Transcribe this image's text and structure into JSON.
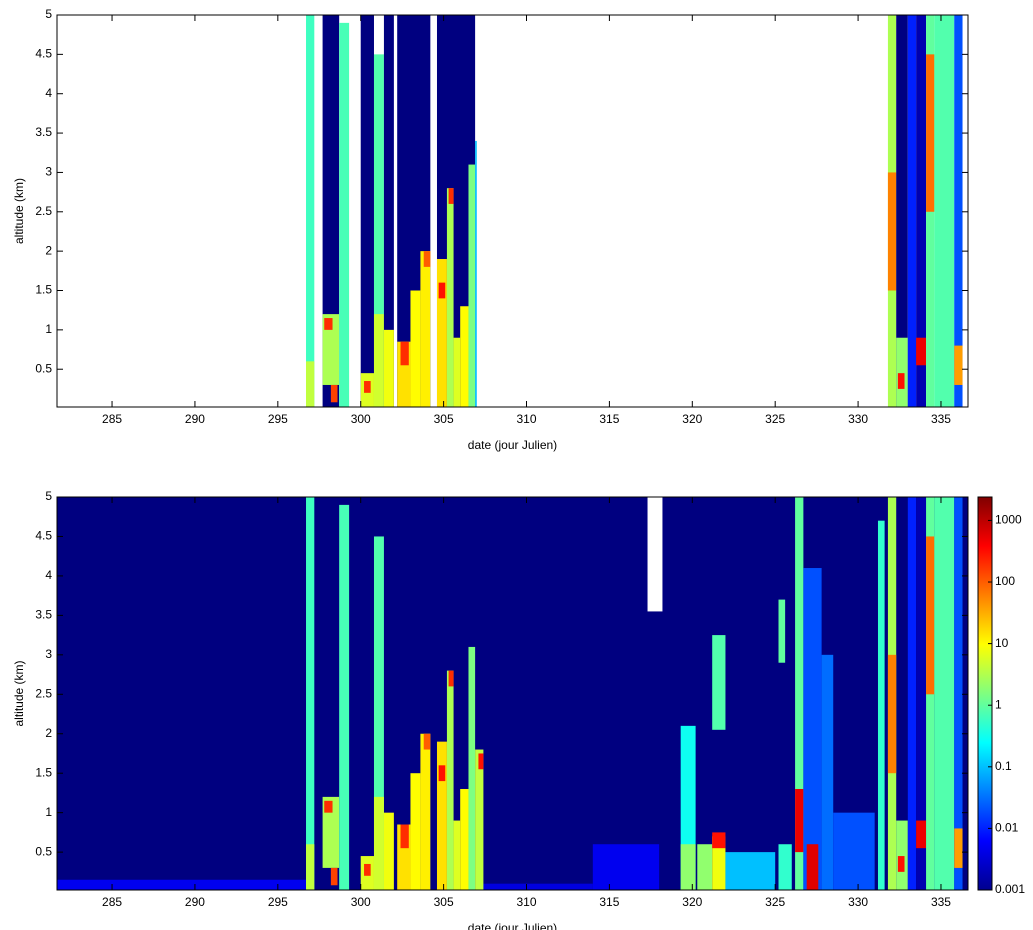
{
  "chart_data": [
    {
      "type": "heatmap",
      "xlabel": "date (jour Julien)",
      "ylabel": "altitude (km)",
      "xlim": [
        281.68,
        336.63
      ],
      "ylim": [
        0.02,
        5
      ],
      "xticks": [
        285,
        290,
        295,
        300,
        305,
        310,
        315,
        320,
        325,
        330,
        335
      ],
      "yticks": [
        0.5,
        1,
        1.5,
        2,
        2.5,
        3,
        3.5,
        4,
        4.5,
        5
      ],
      "colormap": "jet",
      "clim": [
        0.001,
        2400
      ],
      "log_color": true,
      "cells": [
        [
          296.7,
          297.2,
          0.02,
          5,
          0.6
        ],
        [
          296.7,
          297.2,
          0.02,
          0.6,
          4
        ],
        [
          297.7,
          298.7,
          0.02,
          5,
          0.001
        ],
        [
          297.7,
          298.7,
          0.3,
          1.2,
          3
        ],
        [
          297.8,
          298.3,
          1.0,
          1.15,
          200
        ],
        [
          298.2,
          298.6,
          0.08,
          0.3,
          150
        ],
        [
          298.7,
          299.3,
          0.02,
          4.9,
          0.7
        ],
        [
          300.0,
          300.8,
          0.02,
          5,
          0.001
        ],
        [
          300.0,
          300.8,
          0.02,
          0.45,
          6
        ],
        [
          300.2,
          300.6,
          0.2,
          0.35,
          200
        ],
        [
          300.8,
          301.4,
          0.02,
          4.5,
          0.8
        ],
        [
          300.8,
          301.4,
          0.02,
          1.2,
          5
        ],
        [
          301.4,
          302.0,
          0.02,
          5,
          0.001
        ],
        [
          301.4,
          302.0,
          0.02,
          1.0,
          8
        ],
        [
          302.2,
          304.2,
          0.02,
          5,
          0.001
        ],
        [
          302.2,
          303.0,
          0.02,
          0.85,
          15
        ],
        [
          302.4,
          302.9,
          0.55,
          0.85,
          200
        ],
        [
          303.0,
          303.6,
          0.02,
          1.5,
          10
        ],
        [
          303.6,
          304.2,
          0.02,
          2.0,
          12
        ],
        [
          303.8,
          304.2,
          1.8,
          2.0,
          100
        ],
        [
          304.6,
          306.9,
          0.02,
          5,
          0.001
        ],
        [
          304.6,
          305.2,
          0.02,
          1.9,
          15
        ],
        [
          304.7,
          305.1,
          1.4,
          1.6,
          300
        ],
        [
          305.2,
          305.6,
          0.02,
          2.8,
          3
        ],
        [
          305.3,
          305.6,
          2.6,
          2.8,
          200
        ],
        [
          305.6,
          306.0,
          0.02,
          0.9,
          6
        ],
        [
          306.0,
          306.5,
          0.02,
          1.3,
          10
        ],
        [
          306.5,
          306.9,
          0.02,
          3.1,
          1.5
        ],
        [
          306.9,
          307.0,
          0.02,
          3.4,
          0.1
        ],
        [
          331.8,
          332.3,
          0.02,
          5,
          3
        ],
        [
          331.8,
          332.3,
          1.5,
          3.0,
          60
        ],
        [
          332.3,
          333.0,
          0.02,
          5,
          0.001
        ],
        [
          332.3,
          333.0,
          0.02,
          0.9,
          2
        ],
        [
          332.4,
          332.8,
          0.25,
          0.45,
          300
        ],
        [
          333.0,
          333.5,
          0.02,
          5,
          0.01
        ],
        [
          333.5,
          334.1,
          0.02,
          5,
          0.002
        ],
        [
          333.5,
          334.1,
          0.55,
          0.9,
          500
        ],
        [
          334.1,
          334.6,
          0.02,
          5,
          1
        ],
        [
          334.1,
          334.6,
          2.5,
          4.5,
          80
        ],
        [
          334.6,
          335.8,
          0.02,
          5,
          0.8
        ],
        [
          335.8,
          336.3,
          0.02,
          5,
          0.02
        ],
        [
          335.8,
          336.3,
          0.3,
          0.8,
          40
        ]
      ]
    },
    {
      "type": "heatmap",
      "xlabel": "date (jour Julien)",
      "ylabel": "altitude (km)",
      "xlim": [
        281.68,
        336.63
      ],
      "ylim": [
        0.02,
        5
      ],
      "xticks": [
        285,
        290,
        295,
        300,
        305,
        310,
        315,
        320,
        325,
        330,
        335
      ],
      "yticks": [
        0.5,
        1,
        1.5,
        2,
        2.5,
        3,
        3.5,
        4,
        4.5,
        5
      ],
      "colormap": "jet",
      "clim": [
        0.001,
        2400
      ],
      "log_color": true,
      "colorbar": true,
      "cticks": [
        0.001,
        0.01,
        0.1,
        1,
        10,
        100,
        1000
      ],
      "gaps": [
        [
          317.3,
          318.2,
          3.55,
          5
        ]
      ],
      "cells": [
        [
          281.68,
          336.63,
          0.02,
          5,
          0.001
        ],
        [
          281.68,
          297,
          0.02,
          0.15,
          0.005
        ],
        [
          307,
          314,
          0.02,
          0.1,
          0.004
        ],
        [
          314,
          318,
          0.02,
          0.6,
          0.005
        ],
        [
          296.7,
          297.2,
          0.02,
          5,
          0.6
        ],
        [
          296.7,
          297.2,
          0.02,
          0.6,
          4
        ],
        [
          297.7,
          298.7,
          0.3,
          1.2,
          3
        ],
        [
          297.8,
          298.3,
          1.0,
          1.15,
          200
        ],
        [
          298.2,
          298.6,
          0.08,
          0.3,
          150
        ],
        [
          298.7,
          299.3,
          0.02,
          4.9,
          0.7
        ],
        [
          300.0,
          300.8,
          0.02,
          0.45,
          6
        ],
        [
          300.2,
          300.6,
          0.2,
          0.35,
          200
        ],
        [
          300.8,
          301.4,
          0.02,
          4.5,
          0.8
        ],
        [
          300.8,
          301.4,
          0.02,
          1.2,
          5
        ],
        [
          301.4,
          302.0,
          0.02,
          1.0,
          8
        ],
        [
          302.2,
          303.0,
          0.02,
          0.85,
          15
        ],
        [
          302.4,
          302.9,
          0.55,
          0.85,
          200
        ],
        [
          303.0,
          303.6,
          0.02,
          1.5,
          10
        ],
        [
          303.6,
          304.2,
          0.02,
          2.0,
          12
        ],
        [
          303.8,
          304.2,
          1.8,
          2.0,
          100
        ],
        [
          304.6,
          305.2,
          0.02,
          1.9,
          15
        ],
        [
          304.7,
          305.1,
          1.4,
          1.6,
          300
        ],
        [
          305.2,
          305.6,
          0.02,
          2.8,
          3
        ],
        [
          305.3,
          305.6,
          2.6,
          2.8,
          200
        ],
        [
          305.6,
          306.0,
          0.02,
          0.9,
          6
        ],
        [
          306.0,
          306.5,
          0.02,
          1.3,
          10
        ],
        [
          306.5,
          306.9,
          0.02,
          3.1,
          1.5
        ],
        [
          306.9,
          307.4,
          0.02,
          1.8,
          4
        ],
        [
          307.1,
          307.4,
          1.55,
          1.75,
          300
        ],
        [
          319.3,
          320.2,
          0.02,
          2.1,
          0.3
        ],
        [
          319.3,
          320.2,
          0.02,
          0.6,
          2
        ],
        [
          320.3,
          321.2,
          0.02,
          0.6,
          2
        ],
        [
          321.2,
          322.0,
          0.02,
          0.7,
          8
        ],
        [
          321.2,
          322.0,
          0.55,
          0.75,
          300
        ],
        [
          321.2,
          322.0,
          2.05,
          3.25,
          0.8
        ],
        [
          322.0,
          325.0,
          0.02,
          0.5,
          0.1
        ],
        [
          325.2,
          325.6,
          2.9,
          3.7,
          1
        ],
        [
          325.2,
          326.0,
          0.02,
          0.6,
          0.5
        ],
        [
          326.2,
          326.7,
          0.02,
          5,
          1
        ],
        [
          326.2,
          326.7,
          0.5,
          1.3,
          500
        ],
        [
          326.7,
          327.8,
          0.02,
          4.1,
          0.02
        ],
        [
          326.9,
          327.6,
          0.02,
          0.6,
          600
        ],
        [
          327.8,
          328.5,
          0.02,
          3.0,
          0.03
        ],
        [
          328.5,
          331.0,
          0.02,
          1.0,
          0.02
        ],
        [
          331.2,
          331.6,
          0.02,
          4.7,
          0.5
        ],
        [
          331.8,
          332.3,
          0.02,
          5,
          3
        ],
        [
          331.8,
          332.3,
          1.5,
          3.0,
          60
        ],
        [
          332.3,
          333.0,
          0.02,
          0.9,
          2
        ],
        [
          332.4,
          332.8,
          0.25,
          0.45,
          300
        ],
        [
          333.0,
          333.5,
          0.02,
          5,
          0.01
        ],
        [
          333.5,
          334.1,
          0.02,
          5,
          0.002
        ],
        [
          333.5,
          334.1,
          0.55,
          0.9,
          500
        ],
        [
          334.1,
          334.6,
          0.02,
          5,
          1
        ],
        [
          334.1,
          334.6,
          2.5,
          4.5,
          80
        ],
        [
          334.6,
          335.8,
          0.02,
          5,
          0.8
        ],
        [
          335.8,
          336.3,
          0.02,
          5,
          0.02
        ],
        [
          335.8,
          336.3,
          0.3,
          0.8,
          40
        ]
      ]
    }
  ]
}
